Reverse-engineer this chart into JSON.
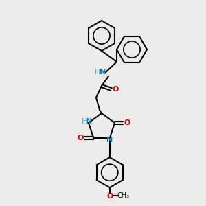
{
  "bg_color": "#ececec",
  "bond_color": "#000000",
  "bond_lw": 1.5,
  "atom_colors": {
    "N": "#4ab5b5",
    "O": "#cc0000",
    "label_N": "#1a7ab5",
    "H": "#4ab5b5"
  },
  "font_size_atom": 8,
  "font_size_label": 8
}
